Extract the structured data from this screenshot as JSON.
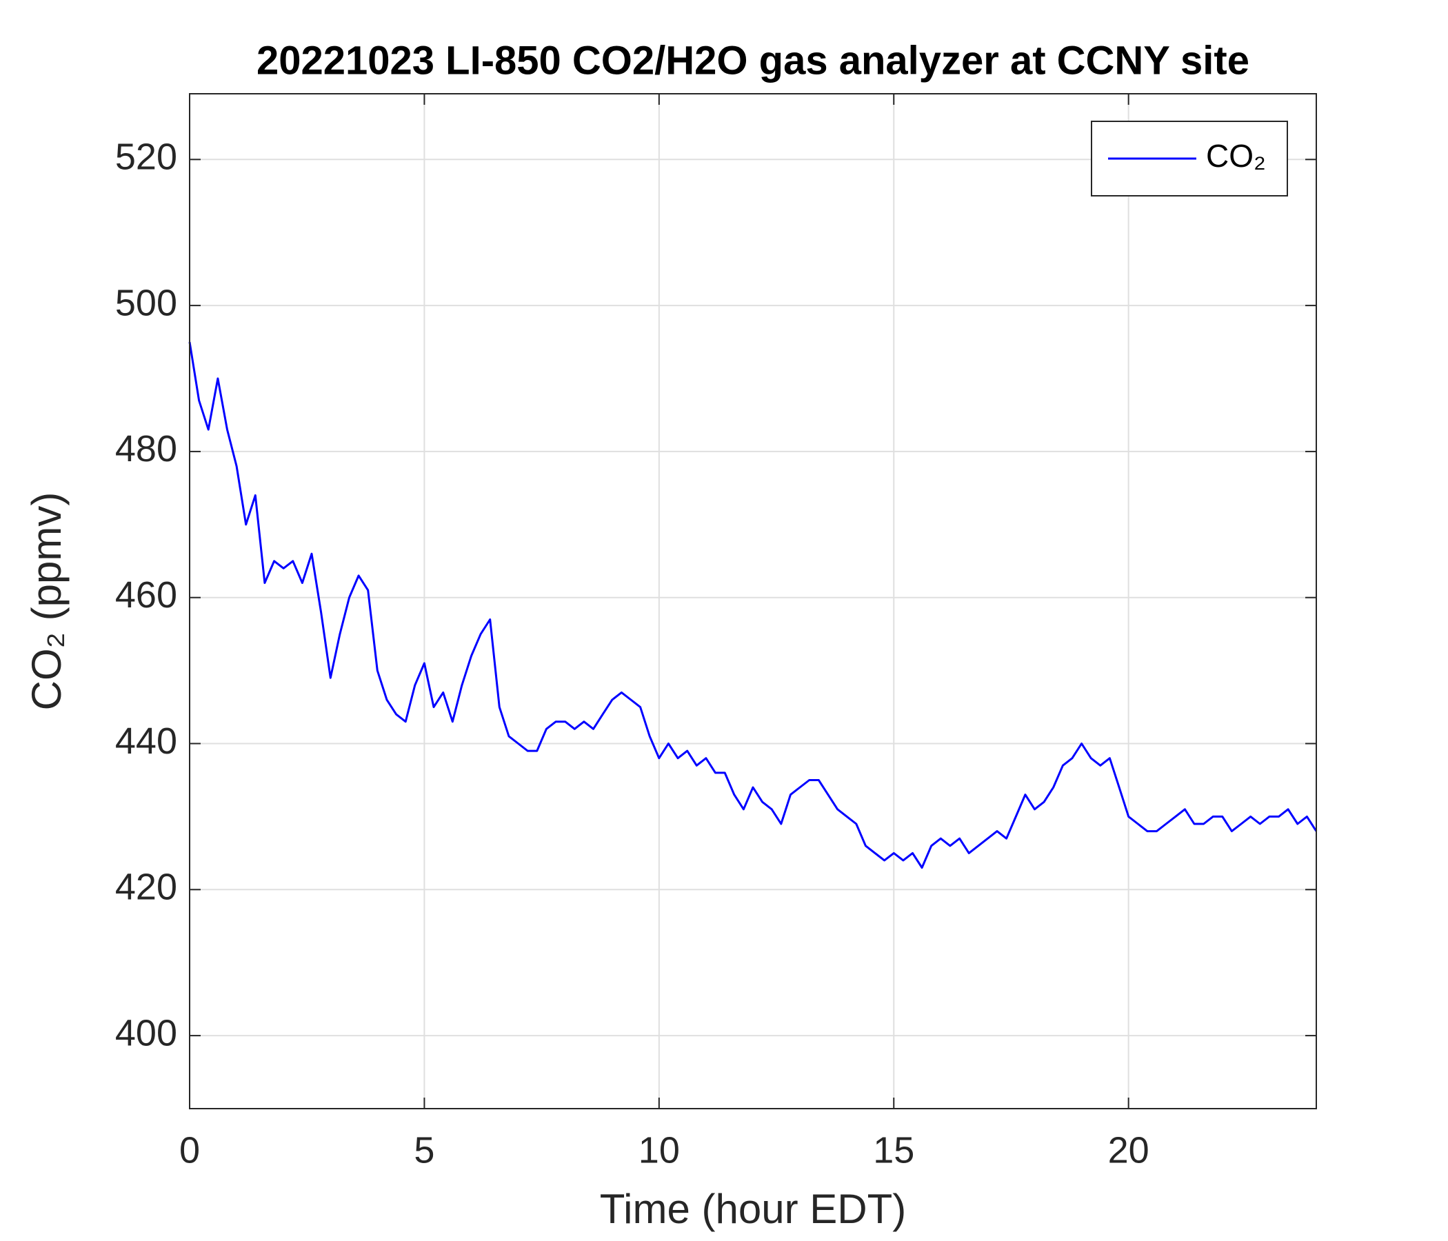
{
  "chart_data": {
    "type": "line",
    "title": "20221023 LI-850 CO2/H2O gas analyzer at CCNY site",
    "x_label": "Time (hour EDT)",
    "y_label": "CO₂ (ppmv)",
    "xlim": [
      0,
      24
    ],
    "ylim": [
      390,
      529
    ],
    "xticks": [
      0,
      5,
      10,
      15,
      20
    ],
    "yticks": [
      400,
      420,
      440,
      460,
      480,
      500,
      520
    ],
    "grid": true,
    "legend": "upper right",
    "x": [
      0,
      0.2,
      0.4,
      0.6,
      0.8,
      1,
      1.2,
      1.4,
      1.6,
      1.8,
      2,
      2.2,
      2.4,
      2.6,
      2.8,
      3,
      3.2,
      3.4,
      3.6,
      3.8,
      4,
      4.2,
      4.4,
      4.6,
      4.8,
      5,
      5.2,
      5.4,
      5.6,
      5.8,
      6,
      6.2,
      6.4,
      6.6,
      6.8,
      7,
      7.2,
      7.4,
      7.6,
      7.8,
      8,
      8.2,
      8.4,
      8.6,
      8.8,
      9,
      9.2,
      9.4,
      9.6,
      9.8,
      10,
      10.2,
      10.4,
      10.6,
      10.8,
      11,
      11.2,
      11.4,
      11.6,
      11.8,
      12,
      12.2,
      12.4,
      12.6,
      12.8,
      13,
      13.2,
      13.4,
      13.6,
      13.8,
      14,
      14.2,
      14.4,
      14.6,
      14.8,
      15,
      15.2,
      15.4,
      15.6,
      15.8,
      16,
      16.2,
      16.4,
      16.6,
      16.8,
      17,
      17.2,
      17.4,
      17.6,
      17.8,
      18,
      18.2,
      18.4,
      18.6,
      18.8,
      19,
      19.2,
      19.4,
      19.6,
      19.8,
      20,
      20.2,
      20.4,
      20.6,
      20.8,
      21,
      21.2,
      21.4,
      21.6,
      21.8,
      22,
      22.2,
      22.4,
      22.6,
      22.8,
      23,
      23.2,
      23.4,
      23.6,
      23.8,
      24
    ],
    "series": [
      {
        "name": "CO₂",
        "color": "#0000ff",
        "values": [
          495,
          487,
          483,
          490,
          483,
          478,
          470,
          474,
          462,
          465,
          464,
          465,
          462,
          466,
          458,
          449,
          455,
          460,
          463,
          461,
          450,
          446,
          444,
          443,
          448,
          451,
          445,
          447,
          443,
          448,
          452,
          455,
          457,
          445,
          441,
          440,
          439,
          439,
          442,
          443,
          443,
          442,
          443,
          442,
          444,
          446,
          447,
          446,
          445,
          441,
          438,
          440,
          438,
          439,
          437,
          438,
          436,
          436,
          433,
          431,
          434,
          432,
          431,
          429,
          433,
          434,
          435,
          435,
          433,
          431,
          430,
          429,
          426,
          425,
          424,
          425,
          424,
          425,
          423,
          426,
          427,
          426,
          427,
          425,
          426,
          427,
          428,
          427,
          430,
          433,
          431,
          432,
          434,
          437,
          438,
          440,
          438,
          437,
          438,
          434,
          430,
          429,
          428,
          428,
          429,
          430,
          431,
          429,
          429,
          430,
          430,
          428,
          429,
          430,
          429,
          430,
          430,
          431,
          429,
          430,
          428
        ]
      }
    ]
  }
}
